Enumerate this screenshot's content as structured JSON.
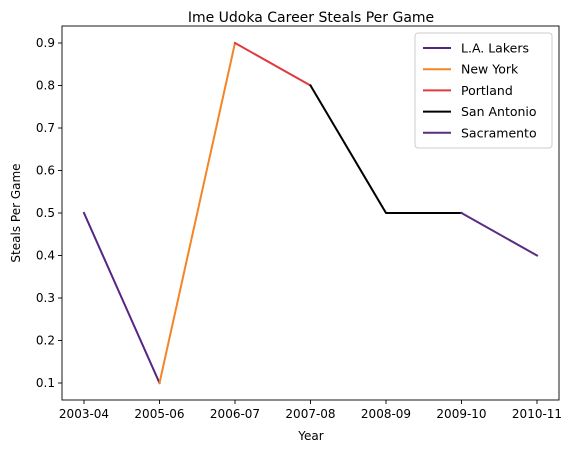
{
  "chart_data": {
    "type": "line",
    "title": "Ime Udoka Career Steals Per Game",
    "xlabel": "Year",
    "ylabel": "Steals Per Game",
    "categories": [
      "2003-04",
      "2005-06",
      "2006-07",
      "2007-08",
      "2008-09",
      "2009-10",
      "2010-11"
    ],
    "yticks": [
      "0.1",
      "0.2",
      "0.3",
      "0.4",
      "0.5",
      "0.6",
      "0.7",
      "0.8",
      "0.9"
    ],
    "ylim": [
      0.06,
      0.94
    ],
    "grid": false,
    "legend_position": "top-right",
    "series": [
      {
        "name": "L.A. Lakers",
        "color": "#552583",
        "x": [
          "2003-04",
          "2005-06"
        ],
        "values": [
          0.5,
          0.1
        ]
      },
      {
        "name": "New York",
        "color": "#F58426",
        "x": [
          "2005-06",
          "2006-07"
        ],
        "values": [
          0.1,
          0.9
        ]
      },
      {
        "name": "Portland",
        "color": "#E03A3E",
        "x": [
          "2006-07",
          "2007-08"
        ],
        "values": [
          0.9,
          0.8
        ]
      },
      {
        "name": "San Antonio",
        "color": "#000000",
        "x": [
          "2007-08",
          "2008-09",
          "2009-10"
        ],
        "values": [
          0.8,
          0.5,
          0.5
        ]
      },
      {
        "name": "Sacramento",
        "color": "#5A2D81",
        "x": [
          "2009-10",
          "2010-11"
        ],
        "values": [
          0.5,
          0.4
        ]
      }
    ]
  }
}
